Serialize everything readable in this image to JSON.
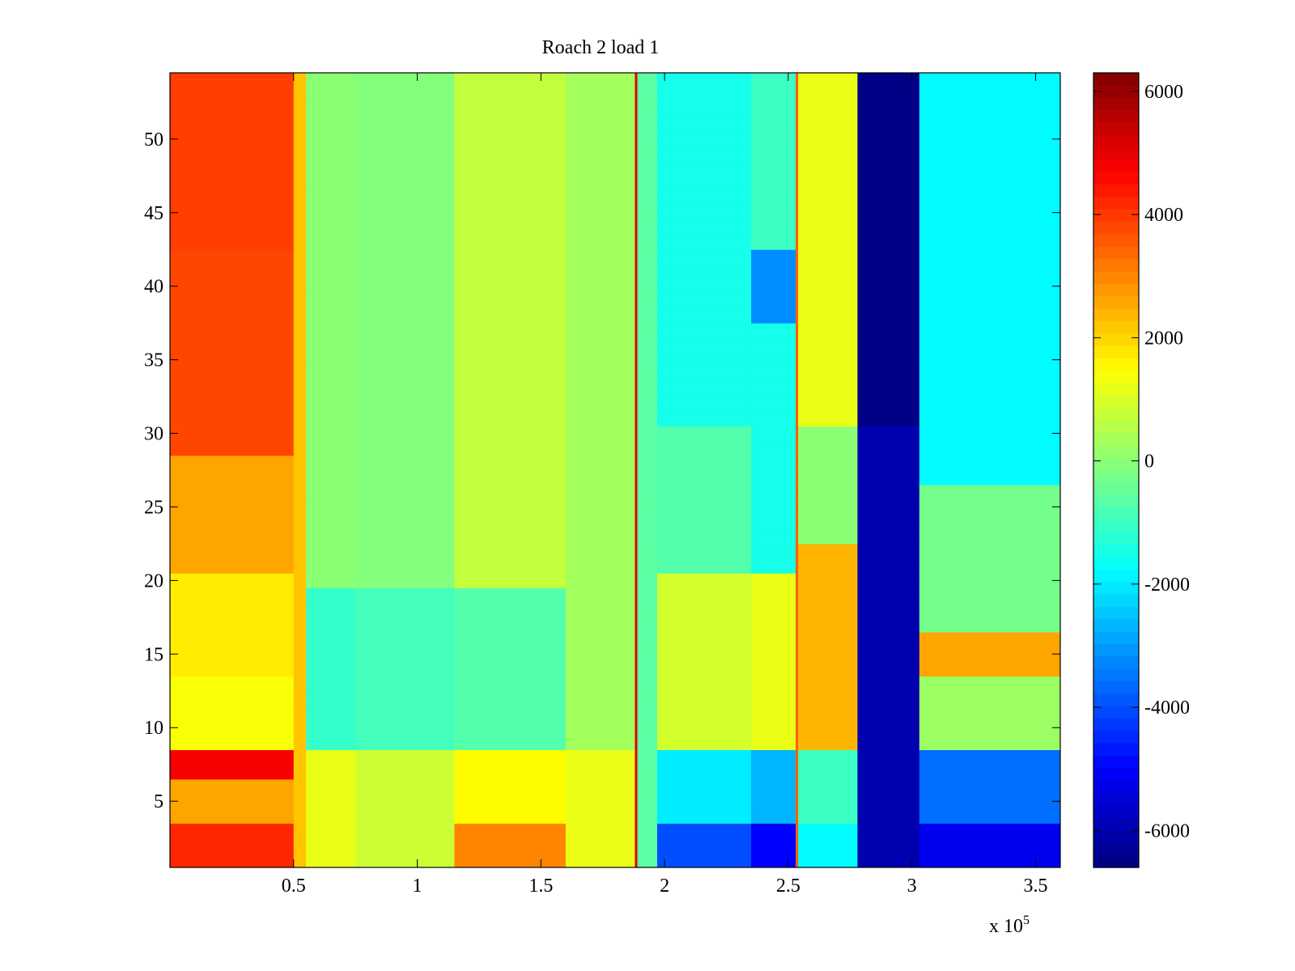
{
  "chart_data": {
    "type": "heatmap",
    "title": "Roach 2 load 1",
    "xlabel": "",
    "ylabel": "",
    "x_multiplier_label": {
      "base": "x 10",
      "exponent": "5"
    },
    "xlim": [
      0,
      3.6
    ],
    "ylim": [
      0.5,
      54.5
    ],
    "x_ticks": [
      0.5,
      1,
      1.5,
      2,
      2.5,
      3,
      3.5
    ],
    "x_tick_labels": [
      "0.5",
      "1",
      "1.5",
      "2",
      "2.5",
      "3",
      "3.5"
    ],
    "y_ticks": [
      5,
      10,
      15,
      20,
      25,
      30,
      35,
      40,
      45,
      50
    ],
    "y_tick_labels": [
      "5",
      "10",
      "15",
      "20",
      "25",
      "30",
      "35",
      "40",
      "45",
      "50"
    ],
    "rows": 54,
    "colorbar": {
      "colormap": "jet",
      "clim": [
        -6600,
        6300
      ],
      "ticks": [
        6000,
        4000,
        2000,
        0,
        -2000,
        -4000,
        -6000
      ],
      "tick_labels": [
        "6000",
        "4000",
        "2000",
        "0",
        "-2000",
        "-4000",
        "-6000"
      ]
    },
    "column_bands": [
      {
        "x_start": 0.0,
        "x_end": 0.5,
        "value_by_row_group": {
          "1-3": 4200,
          "4-6": 2600,
          "7-8": 4800,
          "9-13": 1400,
          "14-20": 1700,
          "21-28": 2600,
          "29-42": 3800,
          "43-54": 3900
        }
      },
      {
        "x_start": 0.5,
        "x_end": 0.55,
        "value_by_row_group": {
          "all": 2200
        }
      },
      {
        "x_start": 0.55,
        "x_end": 0.75,
        "value_by_row_group": {
          "1-8": 1200,
          "9-19": -1100,
          "20-54": 0
        }
      },
      {
        "x_start": 0.75,
        "x_end": 1.15,
        "value_by_row_group": {
          "1-8": 800,
          "9-19": -900,
          "20-54": -100
        }
      },
      {
        "x_start": 1.15,
        "x_end": 1.6,
        "value_by_row_group": {
          "1-3": 3000,
          "4-8": 1500,
          "9-19": -700,
          "20-54": 700
        }
      },
      {
        "x_start": 1.6,
        "x_end": 1.88,
        "value_by_row_group": {
          "1-8": 1200,
          "9-54": 300
        }
      },
      {
        "x_start": 1.88,
        "x_end": 1.89,
        "value_by_row_group": {
          "all": 5000
        }
      },
      {
        "x_start": 1.89,
        "x_end": 1.97,
        "value_by_row_group": {
          "all": -600
        }
      },
      {
        "x_start": 1.97,
        "x_end": 2.35,
        "value_by_row_group": {
          "1-3": -4000,
          "4-8": -2000,
          "9-20": 900,
          "21-30": -700,
          "31-54": -1500
        }
      },
      {
        "x_start": 2.35,
        "x_end": 2.53,
        "value_by_row_group": {
          "1-3": -5000,
          "4-8": -2700,
          "9-20": 1200,
          "21-37": -1500,
          "38-42": -3200,
          "43-54": -1000
        }
      },
      {
        "x_start": 2.53,
        "x_end": 2.54,
        "value_by_row_group": {
          "all": 3500
        }
      },
      {
        "x_start": 2.54,
        "x_end": 2.78,
        "value_by_row_group": {
          "1-3": -1800,
          "4-8": -1000,
          "9-22": 2400,
          "23-30": 0,
          "31-54": 1200
        }
      },
      {
        "x_start": 2.78,
        "x_end": 3.03,
        "value_by_row_group": {
          "1-30": -6000,
          "31-54": -6500
        }
      },
      {
        "x_start": 3.03,
        "x_end": 3.6,
        "value_by_row_group": {
          "1-3": -5200,
          "4-8": -3600,
          "9-13": 200,
          "14-16": 2600,
          "17-26": -300,
          "27-54": -1800
        }
      }
    ]
  }
}
